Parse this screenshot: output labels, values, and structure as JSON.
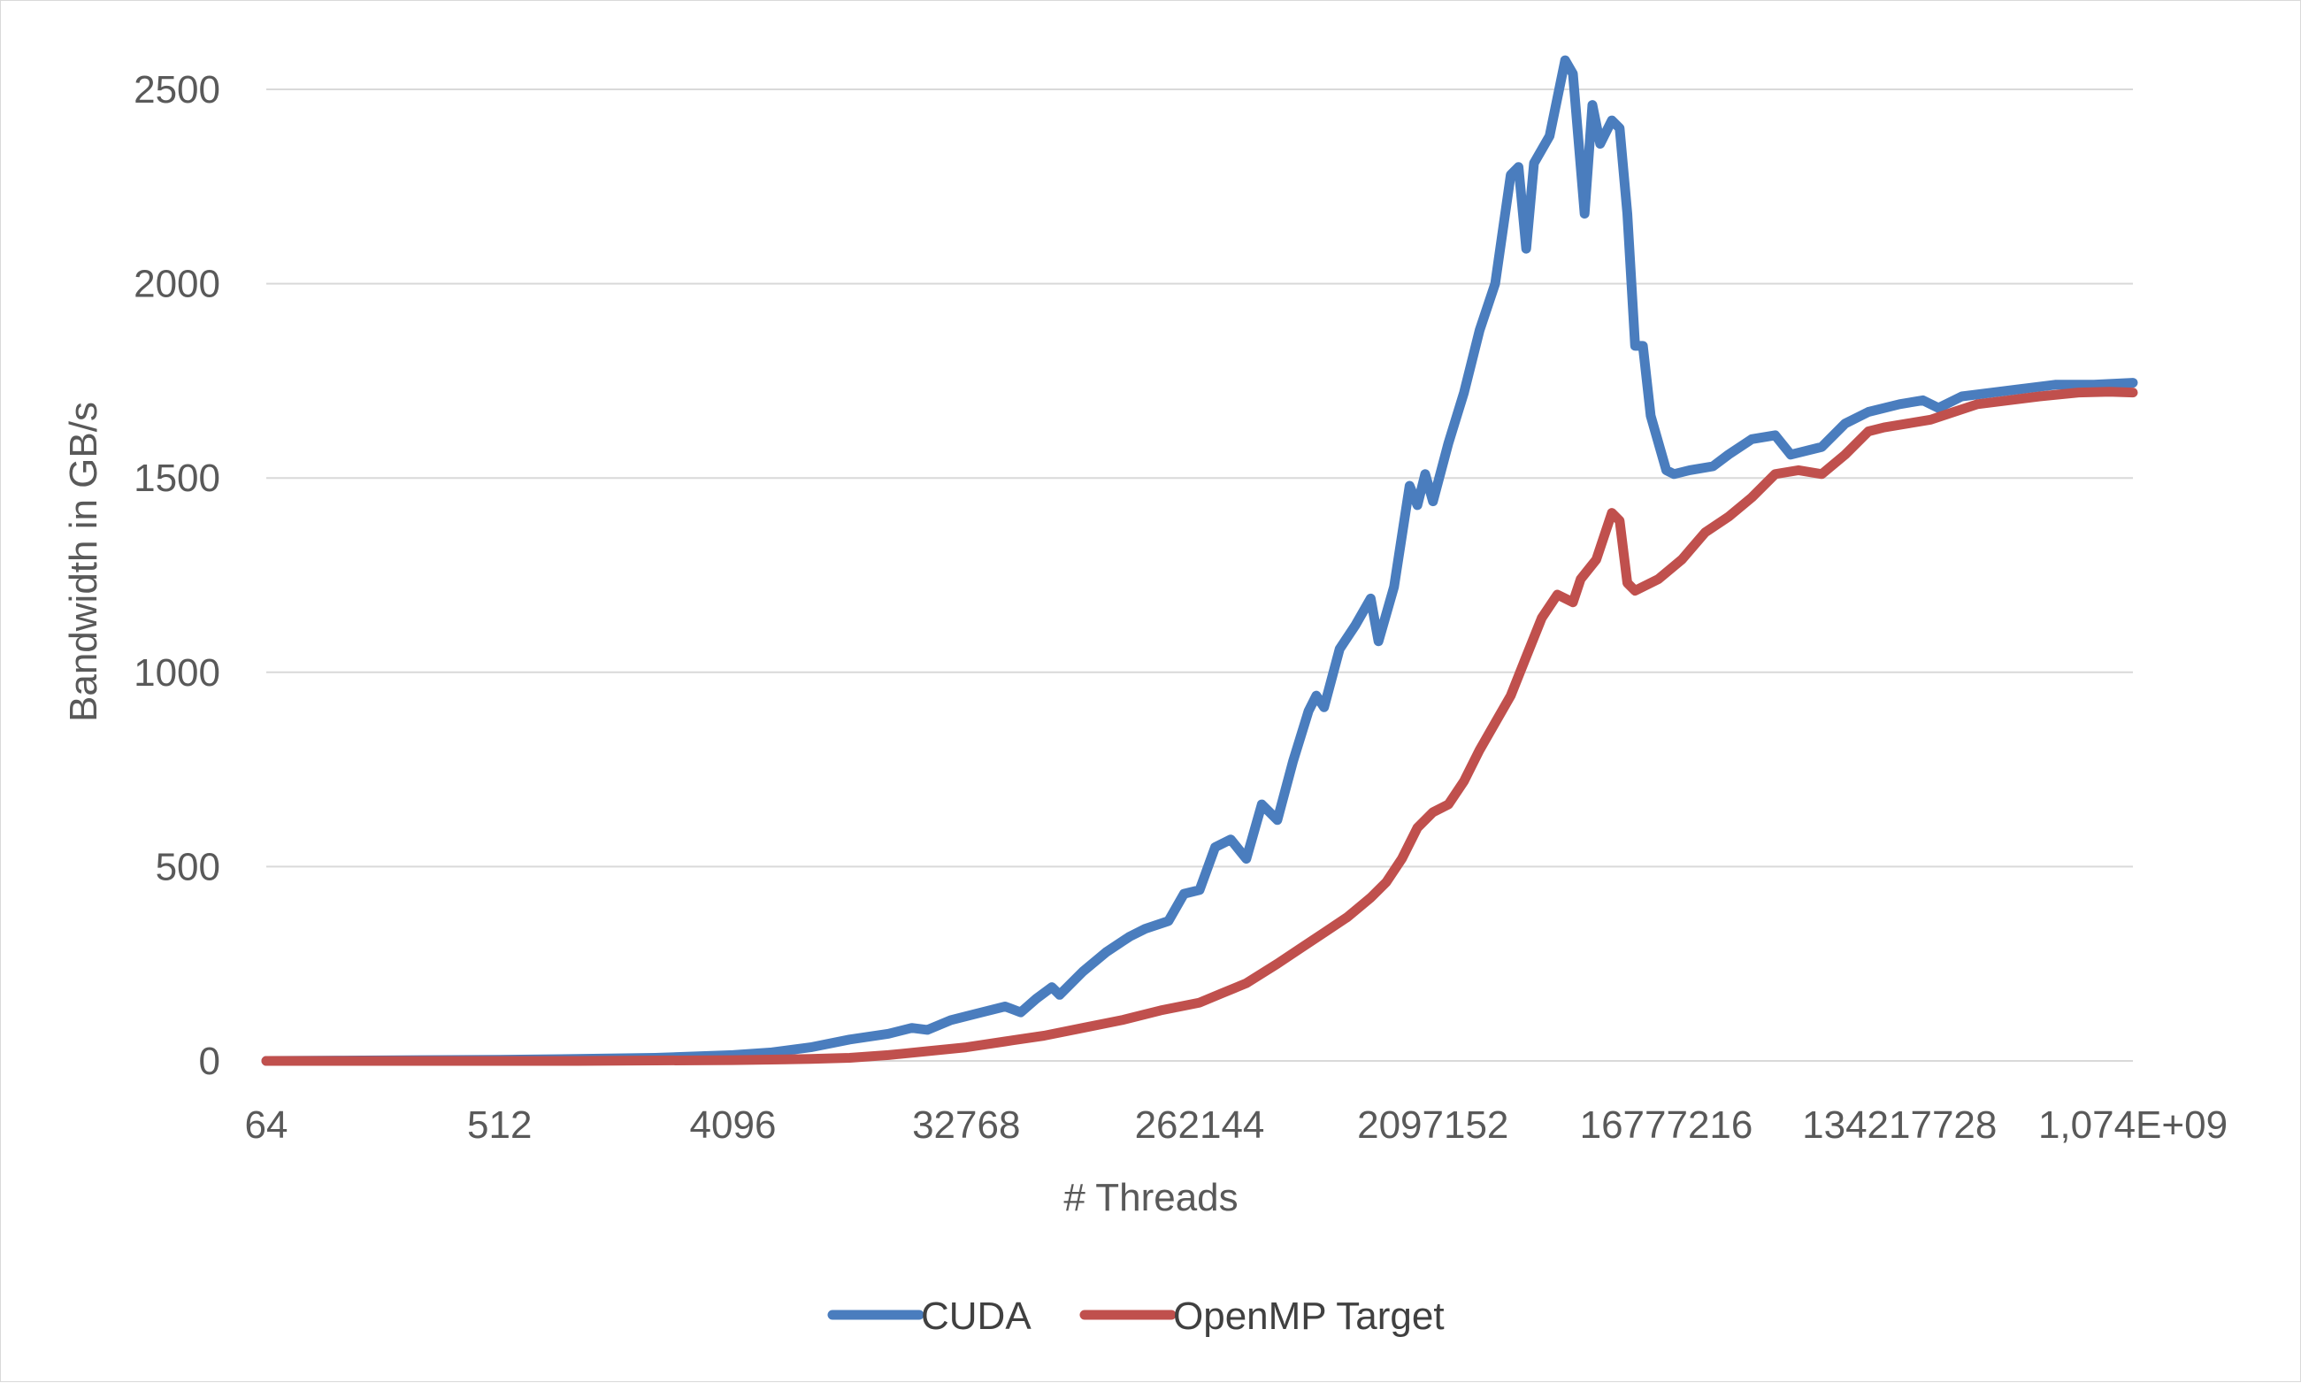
{
  "chart_data": {
    "type": "line",
    "title": "",
    "xlabel": "# Threads",
    "ylabel": "Bandwidth in GB/s",
    "x_scale": "log2",
    "x_ticks": [
      "64",
      "512",
      "4096",
      "32768",
      "262144",
      "2097152",
      "16777216",
      "134217728",
      "1,074E+09"
    ],
    "y_ticks": [
      "0",
      "500",
      "1000",
      "1500",
      "2000",
      "2500"
    ],
    "ylim": [
      0,
      2500
    ],
    "grid": "horizontal",
    "legend_position": "bottom",
    "x_range_log2": [
      6,
      30
    ],
    "series": [
      {
        "name": "CUDA",
        "color": "#4a7dbe",
        "points": [
          [
            6,
            0
          ],
          [
            7,
            1
          ],
          [
            8,
            2
          ],
          [
            9,
            3
          ],
          [
            10,
            5
          ],
          [
            11,
            8
          ],
          [
            12,
            15
          ],
          [
            12.5,
            22
          ],
          [
            13,
            35
          ],
          [
            13.5,
            55
          ],
          [
            14,
            70
          ],
          [
            14.3,
            85
          ],
          [
            14.5,
            80
          ],
          [
            14.8,
            105
          ],
          [
            15.2,
            125
          ],
          [
            15.5,
            140
          ],
          [
            15.7,
            125
          ],
          [
            15.9,
            160
          ],
          [
            16.1,
            190
          ],
          [
            16.2,
            170
          ],
          [
            16.5,
            230
          ],
          [
            16.8,
            280
          ],
          [
            17.1,
            320
          ],
          [
            17.3,
            340
          ],
          [
            17.6,
            360
          ],
          [
            17.8,
            430
          ],
          [
            18.0,
            440
          ],
          [
            18.2,
            550
          ],
          [
            18.4,
            570
          ],
          [
            18.6,
            520
          ],
          [
            18.8,
            660
          ],
          [
            19.0,
            620
          ],
          [
            19.2,
            770
          ],
          [
            19.4,
            900
          ],
          [
            19.5,
            940
          ],
          [
            19.6,
            910
          ],
          [
            19.8,
            1060
          ],
          [
            20.0,
            1120
          ],
          [
            20.2,
            1190
          ],
          [
            20.3,
            1080
          ],
          [
            20.5,
            1220
          ],
          [
            20.7,
            1480
          ],
          [
            20.8,
            1430
          ],
          [
            20.9,
            1510
          ],
          [
            21.0,
            1440
          ],
          [
            21.2,
            1590
          ],
          [
            21.4,
            1720
          ],
          [
            21.6,
            1880
          ],
          [
            21.8,
            2000
          ],
          [
            22.0,
            2280
          ],
          [
            22.1,
            2300
          ],
          [
            22.2,
            2090
          ],
          [
            22.3,
            2310
          ],
          [
            22.5,
            2380
          ],
          [
            22.7,
            2575
          ],
          [
            22.8,
            2540
          ],
          [
            22.95,
            2180
          ],
          [
            23.05,
            2460
          ],
          [
            23.15,
            2360
          ],
          [
            23.3,
            2420
          ],
          [
            23.4,
            2400
          ],
          [
            23.5,
            2180
          ],
          [
            23.6,
            1840
          ],
          [
            23.7,
            1840
          ],
          [
            23.8,
            1660
          ],
          [
            24.0,
            1520
          ],
          [
            24.1,
            1510
          ],
          [
            24.3,
            1520
          ],
          [
            24.6,
            1530
          ],
          [
            24.8,
            1560
          ],
          [
            25.1,
            1600
          ],
          [
            25.4,
            1610
          ],
          [
            25.6,
            1560
          ],
          [
            26.0,
            1580
          ],
          [
            26.3,
            1640
          ],
          [
            26.6,
            1670
          ],
          [
            27.0,
            1690
          ],
          [
            27.3,
            1700
          ],
          [
            27.5,
            1680
          ],
          [
            27.8,
            1710
          ],
          [
            28.2,
            1720
          ],
          [
            28.6,
            1730
          ],
          [
            29.0,
            1740
          ],
          [
            29.5,
            1740
          ],
          [
            30,
            1745
          ]
        ]
      },
      {
        "name": "OpenMP Target",
        "color": "#c0504d",
        "points": [
          [
            6,
            0
          ],
          [
            8,
            0
          ],
          [
            10,
            0
          ],
          [
            12,
            2
          ],
          [
            13,
            5
          ],
          [
            13.5,
            8
          ],
          [
            14,
            15
          ],
          [
            14.5,
            25
          ],
          [
            15,
            35
          ],
          [
            15.5,
            50
          ],
          [
            16,
            65
          ],
          [
            16.5,
            85
          ],
          [
            17,
            105
          ],
          [
            17.5,
            130
          ],
          [
            18,
            150
          ],
          [
            18.3,
            175
          ],
          [
            18.6,
            200
          ],
          [
            19,
            250
          ],
          [
            19.3,
            290
          ],
          [
            19.6,
            330
          ],
          [
            19.9,
            370
          ],
          [
            20.2,
            420
          ],
          [
            20.4,
            460
          ],
          [
            20.6,
            520
          ],
          [
            20.8,
            600
          ],
          [
            21.0,
            640
          ],
          [
            21.2,
            660
          ],
          [
            21.4,
            720
          ],
          [
            21.6,
            800
          ],
          [
            21.8,
            870
          ],
          [
            22.0,
            940
          ],
          [
            22.2,
            1040
          ],
          [
            22.4,
            1140
          ],
          [
            22.6,
            1200
          ],
          [
            22.8,
            1180
          ],
          [
            22.9,
            1240
          ],
          [
            23.1,
            1290
          ],
          [
            23.3,
            1410
          ],
          [
            23.4,
            1390
          ],
          [
            23.5,
            1230
          ],
          [
            23.6,
            1210
          ],
          [
            23.9,
            1240
          ],
          [
            24.2,
            1290
          ],
          [
            24.5,
            1360
          ],
          [
            24.8,
            1400
          ],
          [
            25.1,
            1450
          ],
          [
            25.4,
            1510
          ],
          [
            25.7,
            1520
          ],
          [
            26.0,
            1510
          ],
          [
            26.3,
            1560
          ],
          [
            26.6,
            1620
          ],
          [
            26.8,
            1630
          ],
          [
            27.1,
            1640
          ],
          [
            27.4,
            1650
          ],
          [
            27.7,
            1670
          ],
          [
            28.0,
            1690
          ],
          [
            28.4,
            1700
          ],
          [
            28.8,
            1710
          ],
          [
            29.3,
            1720
          ],
          [
            29.7,
            1722
          ],
          [
            30,
            1720
          ]
        ]
      }
    ]
  }
}
